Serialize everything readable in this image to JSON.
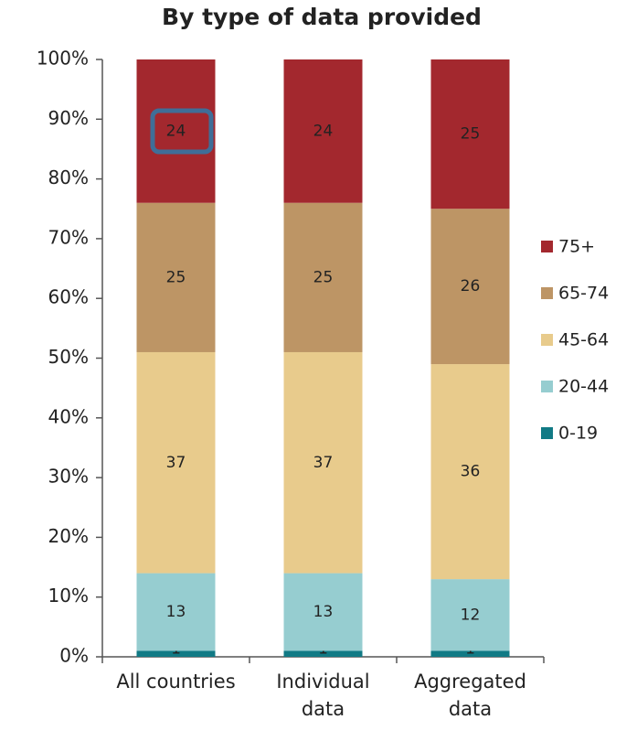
{
  "chart_data": {
    "type": "stacked_bar",
    "title": "By type of data provided",
    "categories": [
      "All countries",
      "Individual data",
      "Aggregated data"
    ],
    "series": [
      {
        "name": "0-19",
        "color": "#117a85",
        "values": [
          1,
          1,
          1
        ]
      },
      {
        "name": "20-44",
        "color": "#96cdd0",
        "values": [
          13,
          13,
          12
        ]
      },
      {
        "name": "45-64",
        "color": "#e8cb8c",
        "values": [
          37,
          37,
          36
        ]
      },
      {
        "name": "65-74",
        "color": "#bd9565",
        "values": [
          25,
          25,
          26
        ]
      },
      {
        "name": "75+",
        "color": "#a3282e",
        "values": [
          24,
          24,
          25
        ]
      }
    ],
    "ylim": [
      0,
      100
    ],
    "yticks": [
      {
        "value": 0,
        "label": "0%"
      },
      {
        "value": 10,
        "label": "10%"
      },
      {
        "value": 20,
        "label": "20%"
      },
      {
        "value": 30,
        "label": "30%"
      },
      {
        "value": 40,
        "label": "40%"
      },
      {
        "value": 50,
        "label": "50%"
      },
      {
        "value": 60,
        "label": "60%"
      },
      {
        "value": 70,
        "label": "70%"
      },
      {
        "value": 80,
        "label": "80%"
      },
      {
        "value": 90,
        "label": "90%"
      },
      {
        "value": 100,
        "label": "100%"
      }
    ],
    "legend": "right"
  }
}
